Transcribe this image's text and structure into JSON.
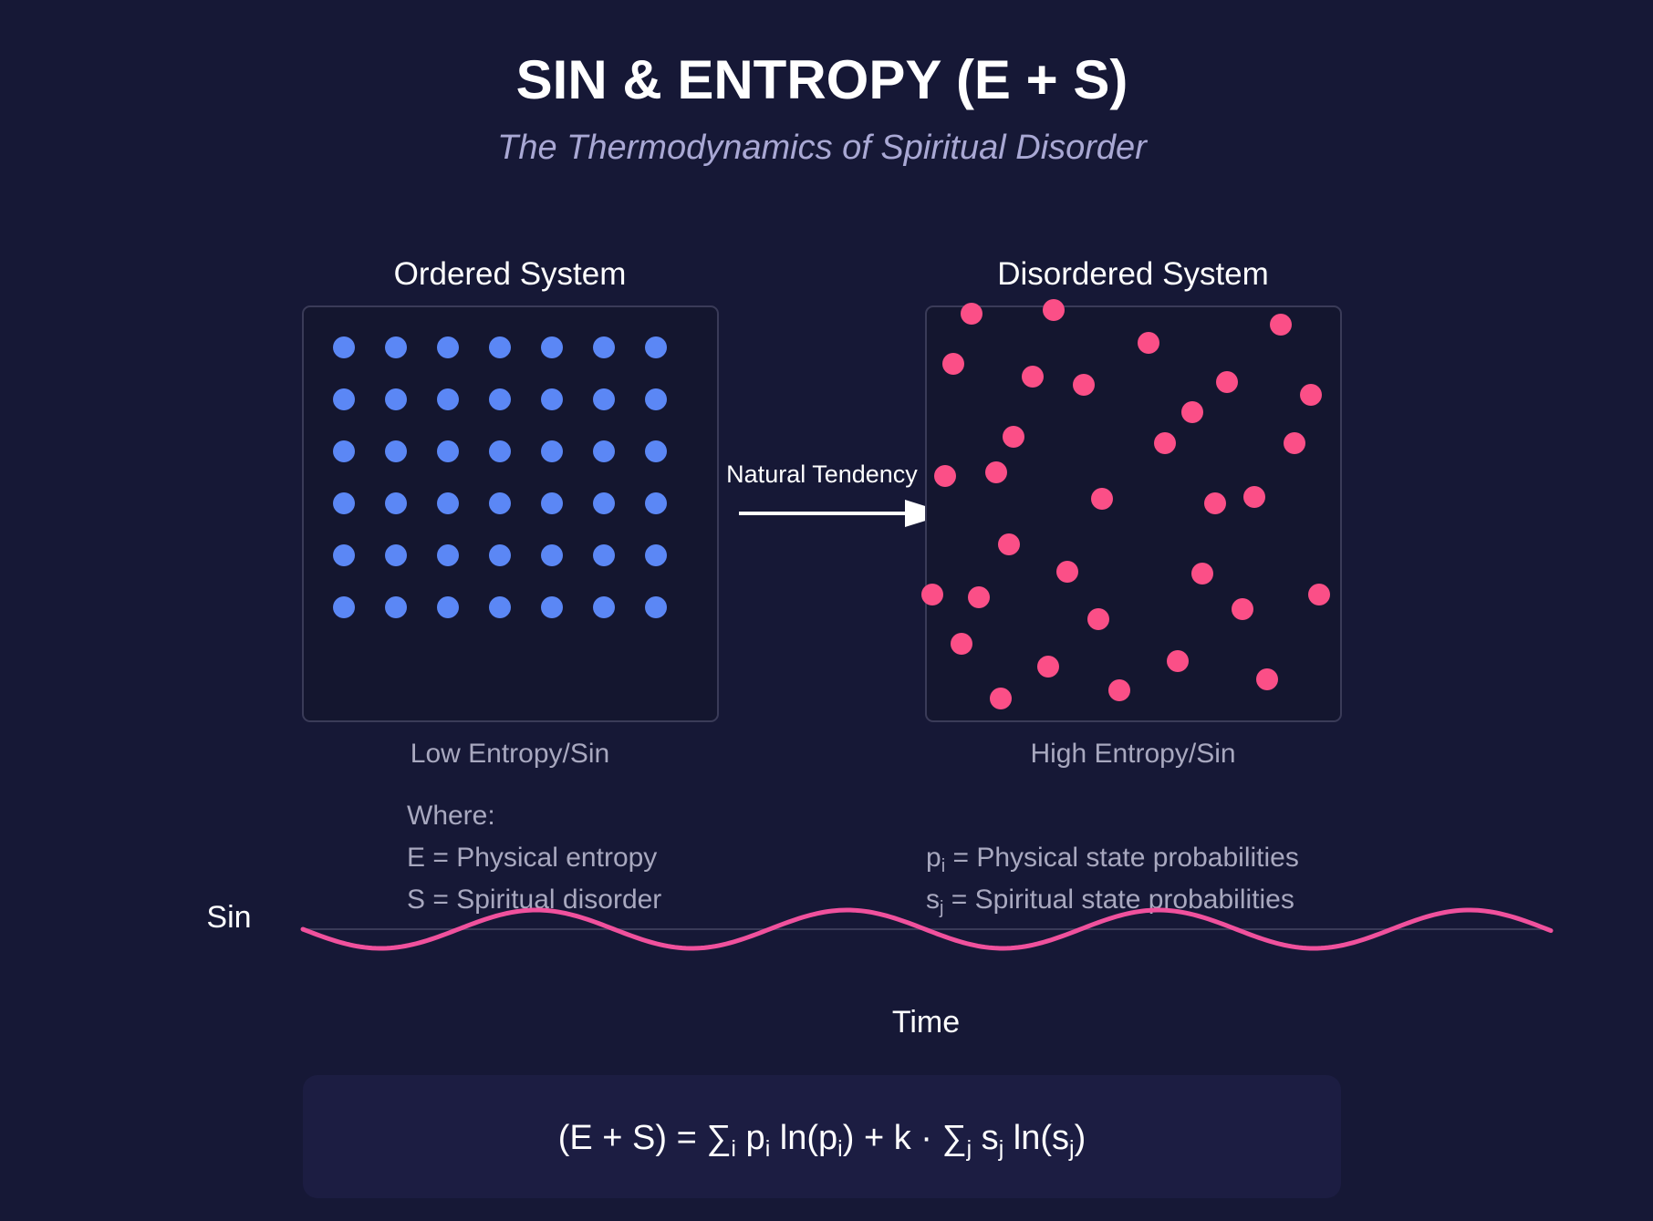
{
  "header": {
    "title": "SIN & ENTROPY (E + S)",
    "subtitle": "The Thermodynamics of Spiritual Disorder"
  },
  "ordered_system": {
    "heading": "Ordered System",
    "caption": "Low Entropy/Sin",
    "rows": 6,
    "cols": 7,
    "dot_color": "#5b87f5"
  },
  "disordered_system": {
    "heading": "Disordered System",
    "caption": "High Entropy/Sin",
    "dot_color": "#fb4f87",
    "particle_count": 38
  },
  "arrow": {
    "label": "Natural Tendency"
  },
  "legend": {
    "where": "Where:",
    "e_def": "E = Physical entropy",
    "s_def": "S = Spiritual disorder",
    "p_def": {
      "sym": "p",
      "sub": "i",
      "rest": " = Physical state probabilities"
    },
    "s_prob_def": {
      "sym": "s",
      "sub": "j",
      "rest": " = Spiritual state probabilities"
    }
  },
  "wave_chart": {
    "y_label": "Sin",
    "x_label": "Time",
    "wave_color": "#f0519d"
  },
  "formula": {
    "parts": [
      "(E + S) = ∑",
      "i",
      " p",
      "i",
      " ln(p",
      "i",
      ") + k · ∑",
      "j",
      " s",
      "j",
      " ln(s",
      "j",
      ")"
    ]
  },
  "colors": {
    "background": "#161836",
    "panel_border": "#3a3b58",
    "panel_fill": "#14162f",
    "formula_box": "#1c1d42"
  }
}
